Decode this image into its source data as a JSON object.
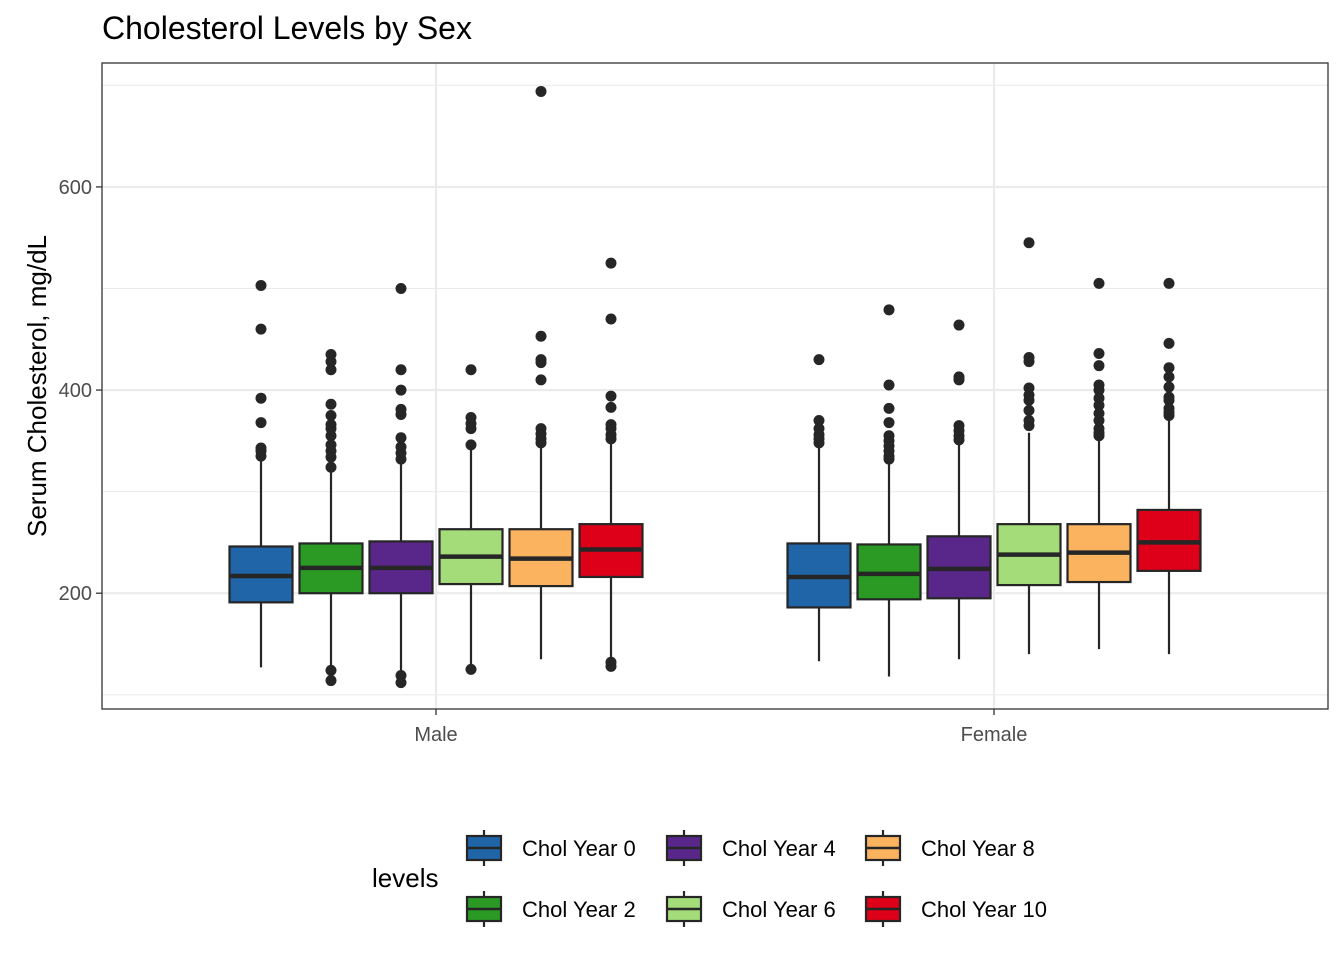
{
  "chart_data": {
    "type": "boxplot",
    "title": "Cholesterol Levels by Sex",
    "xlabel": "",
    "ylabel": "Serum Cholesterol, mg/dL",
    "ylim": [
      86,
      722
    ],
    "yticks": [
      200,
      400,
      600
    ],
    "grid": true,
    "categories": [
      "Male",
      "Female"
    ],
    "legend": {
      "title": "levels",
      "position": "bottom"
    },
    "series": [
      {
        "name": "Chol Year 0",
        "color": "#1f65a8",
        "boxes": [
          {
            "category": "Male",
            "whisker_low": 127,
            "q1": 191,
            "median": 217,
            "q3": 246,
            "whisker_high": 330,
            "outliers": [
              335,
              340,
              343,
              368,
              392,
              460,
              503
            ]
          },
          {
            "category": "Female",
            "whisker_low": 133,
            "q1": 186,
            "median": 216,
            "q3": 249,
            "whisker_high": 345,
            "outliers": [
              348,
              352,
              356,
              362,
              370,
              430
            ]
          }
        ]
      },
      {
        "name": "Chol Year 2",
        "color": "#2a9a24",
        "boxes": [
          {
            "category": "Male",
            "whisker_low": 127,
            "q1": 200,
            "median": 225,
            "q3": 249,
            "whisker_high": 320,
            "outliers": [
              114,
              124,
              324,
              334,
              340,
              346,
              355,
              362,
              366,
              375,
              386,
              420,
              428,
              435
            ]
          },
          {
            "category": "Female",
            "whisker_low": 118,
            "q1": 194,
            "median": 219,
            "q3": 248,
            "whisker_high": 328,
            "outliers": [
              332,
              335,
              340,
              345,
              350,
              355,
              368,
              382,
              405,
              479
            ]
          }
        ]
      },
      {
        "name": "Chol Year 4",
        "color": "#59278a",
        "boxes": [
          {
            "category": "Male",
            "whisker_low": 124,
            "q1": 200,
            "median": 225,
            "q3": 251,
            "whisker_high": 328,
            "outliers": [
              112,
              119,
              332,
              338,
              344,
              353,
              376,
              381,
              400,
              420,
              500
            ]
          },
          {
            "category": "Female",
            "whisker_low": 135,
            "q1": 195,
            "median": 224,
            "q3": 256,
            "whisker_high": 348,
            "outliers": [
              351,
              355,
              360,
              365,
              410,
              413,
              464
            ]
          }
        ]
      },
      {
        "name": "Chol Year 6",
        "color": "#a4dc7a",
        "boxes": [
          {
            "category": "Male",
            "whisker_low": 130,
            "q1": 209,
            "median": 236,
            "q3": 263,
            "whisker_high": 342,
            "outliers": [
              125,
              346,
              362,
              367,
              373,
              420
            ]
          },
          {
            "category": "Female",
            "whisker_low": 140,
            "q1": 208,
            "median": 238,
            "q3": 268,
            "whisker_high": 358,
            "outliers": [
              365,
              370,
              380,
              390,
              395,
              402,
              428,
              432,
              545
            ]
          }
        ]
      },
      {
        "name": "Chol Year 8",
        "color": "#fbb35f",
        "boxes": [
          {
            "category": "Male",
            "whisker_low": 135,
            "q1": 207,
            "median": 234,
            "q3": 263,
            "whisker_high": 345,
            "outliers": [
              348,
              352,
              357,
              362,
              410,
              427,
              430,
              453,
              694
            ]
          },
          {
            "category": "Female",
            "whisker_low": 145,
            "q1": 211,
            "median": 240,
            "q3": 268,
            "whisker_high": 350,
            "outliers": [
              355,
              358,
              362,
              370,
              377,
              385,
              392,
              400,
              405,
              424,
              436,
              505
            ]
          }
        ]
      },
      {
        "name": "Chol Year 10",
        "color": "#dd0018",
        "boxes": [
          {
            "category": "Male",
            "whisker_low": 135,
            "q1": 216,
            "median": 243,
            "q3": 268,
            "whisker_high": 348,
            "outliers": [
              128,
              132,
              352,
              356,
              362,
              366,
              383,
              394,
              470,
              525
            ]
          },
          {
            "category": "Female",
            "whisker_low": 140,
            "q1": 222,
            "median": 250,
            "q3": 282,
            "whisker_high": 372,
            "outliers": [
              375,
              378,
              382,
              390,
              393,
              403,
              413,
              422,
              446,
              505
            ]
          }
        ]
      }
    ]
  }
}
